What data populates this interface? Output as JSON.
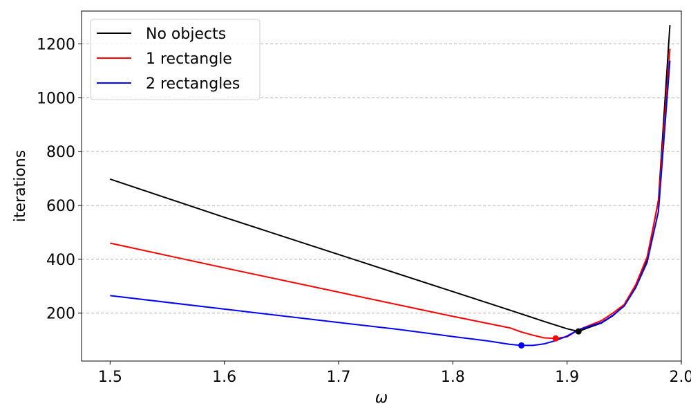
{
  "chart_data": {
    "type": "line",
    "title": "",
    "xlabel": "ω",
    "ylabel": "iterations",
    "xlim": [
      1.475,
      2.0
    ],
    "ylim": [
      22,
      1322
    ],
    "xticks": [
      1.5,
      1.6,
      1.7,
      1.8,
      1.9,
      2.0
    ],
    "xtick_labels": [
      "1.5",
      "1.6",
      "1.7",
      "1.8",
      "1.9",
      "2.0"
    ],
    "yticks": [
      200,
      400,
      600,
      800,
      1000,
      1200
    ],
    "ytick_labels": [
      "200",
      "400",
      "600",
      "800",
      "1000",
      "1200"
    ],
    "grid": "y-dashed",
    "legend_position": "top-left",
    "series": [
      {
        "name": "No objects",
        "color": "#000000",
        "x": [
          1.5,
          1.6,
          1.7,
          1.8,
          1.85,
          1.88,
          1.9,
          1.91,
          1.92,
          1.93,
          1.94,
          1.95,
          1.96,
          1.97,
          1.98,
          1.99
        ],
        "y": [
          698,
          556,
          418,
          280,
          211,
          169,
          142,
          132,
          148,
          163,
          190,
          228,
          300,
          400,
          620,
          1270
        ],
        "min": {
          "x": 1.91,
          "y": 132
        }
      },
      {
        "name": "1 rectangle",
        "color": "#ff0000",
        "x": [
          1.5,
          1.6,
          1.7,
          1.8,
          1.85,
          1.86,
          1.87,
          1.88,
          1.89,
          1.9,
          1.91,
          1.92,
          1.93,
          1.94,
          1.95,
          1.96,
          1.97,
          1.98,
          1.99
        ],
        "y": [
          460,
          368,
          278,
          188,
          145,
          130,
          118,
          108,
          106,
          112,
          138,
          155,
          172,
          200,
          232,
          305,
          408,
          615,
          1182
        ],
        "min": {
          "x": 1.89,
          "y": 106
        }
      },
      {
        "name": "2 rectangles",
        "color": "#0000ff",
        "x": [
          1.5,
          1.6,
          1.7,
          1.75,
          1.8,
          1.83,
          1.85,
          1.86,
          1.87,
          1.88,
          1.89,
          1.9,
          1.91,
          1.92,
          1.93,
          1.94,
          1.95,
          1.96,
          1.97,
          1.98,
          1.99
        ],
        "y": [
          265,
          215,
          165,
          141,
          113,
          97,
          84,
          80,
          80,
          86,
          98,
          115,
          138,
          152,
          165,
          192,
          226,
          294,
          388,
          578,
          1138
        ],
        "min": {
          "x": 1.86,
          "y": 80
        }
      }
    ]
  }
}
